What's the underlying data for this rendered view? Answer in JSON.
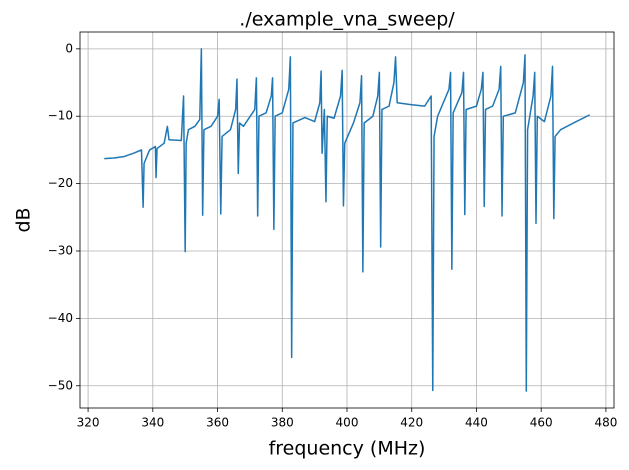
{
  "chart_data": {
    "type": "line",
    "title": "./example_vna_sweep/",
    "xlabel": "frequency (MHz)",
    "ylabel": "dB",
    "color": "#1f77b4",
    "grid": true,
    "xlim": [
      317.5,
      482.5
    ],
    "ylim": [
      -53.3,
      2.5
    ],
    "xticks": [
      320,
      340,
      360,
      380,
      400,
      420,
      440,
      460,
      480
    ],
    "yticks": [
      0,
      {
        "value": -10,
        "label": "−10"
      },
      {
        "value": -20,
        "label": "−20"
      },
      {
        "value": -30,
        "label": "−30"
      },
      {
        "value": -40,
        "label": "−40"
      },
      {
        "value": -50,
        "label": "−50"
      }
    ],
    "x": [
      325,
      328,
      331,
      334,
      336.5,
      337,
      337.3,
      339,
      340.8,
      341,
      341.3,
      343.5,
      344.5,
      345,
      348.8,
      349.5,
      350,
      350.3,
      351,
      353,
      354.5,
      355,
      355.4,
      355.8,
      358,
      360,
      360.5,
      361,
      361.4,
      364,
      365.6,
      366,
      366.4,
      366.8,
      368,
      371.5,
      372,
      372.4,
      372.8,
      375,
      376.6,
      377,
      377.4,
      377.8,
      380,
      382,
      382.5,
      382.9,
      383.3,
      387,
      390,
      391.6,
      392,
      392.3,
      393,
      393.5,
      393.9,
      396,
      398,
      398.5,
      398.9,
      399.3,
      402,
      404,
      404.5,
      404.9,
      405.3,
      408,
      409.5,
      410,
      410.4,
      410.8,
      413,
      414.5,
      415,
      415.5,
      420,
      424,
      426,
      426.5,
      426.9,
      428,
      431.5,
      432,
      432.4,
      432.8,
      435.5,
      436,
      436.4,
      436.8,
      440,
      441.5,
      442,
      442.4,
      442.8,
      445,
      447,
      447.5,
      447.9,
      448.3,
      452,
      454.5,
      455,
      455.4,
      455.8,
      457.5,
      458,
      458.4,
      458.8,
      461,
      463,
      463.5,
      463.9,
      464.3,
      466,
      470,
      475
    ],
    "values": [
      -16.3,
      -16.2,
      -16.0,
      -15.5,
      -15.0,
      -23.5,
      -17,
      -15,
      -14.5,
      -19.1,
      -14.8,
      -14,
      -11.5,
      -13.5,
      -13.6,
      -7,
      -30.1,
      -14,
      -12,
      -11.5,
      -10.5,
      0,
      -24.7,
      -12,
      -11.5,
      -10,
      -7.5,
      -24.5,
      -13,
      -12,
      -9,
      -4.5,
      -18.5,
      -11,
      -11.5,
      -9,
      -4.3,
      -24.8,
      -10,
      -9.5,
      -7,
      -4.3,
      -26.8,
      -10,
      -9.5,
      -6,
      -1.2,
      -45.8,
      -11,
      -10.2,
      -10.8,
      -8,
      -3.3,
      -15.5,
      -9,
      -22.7,
      -10,
      -10.3,
      -7,
      -3.2,
      -23.3,
      -14,
      -11,
      -8,
      -4,
      -33.1,
      -11,
      -10,
      -7,
      -3.5,
      -29.4,
      -9,
      -8.5,
      -5,
      -1.2,
      -8,
      -8.3,
      -8.5,
      -7,
      -50.7,
      -13,
      -10,
      -6,
      -3.5,
      -32.7,
      -9.5,
      -6.5,
      -3.5,
      -24.6,
      -9,
      -8.5,
      -6,
      -3.5,
      -23.4,
      -9,
      -8.5,
      -6,
      -2.6,
      -24.8,
      -10,
      -9.5,
      -5,
      -0.9,
      -50.8,
      -12,
      -7,
      -3.5,
      -25.9,
      -10,
      -10.8,
      -7,
      -2.6,
      -25.2,
      -13,
      -12,
      -11,
      -9.8
    ]
  }
}
